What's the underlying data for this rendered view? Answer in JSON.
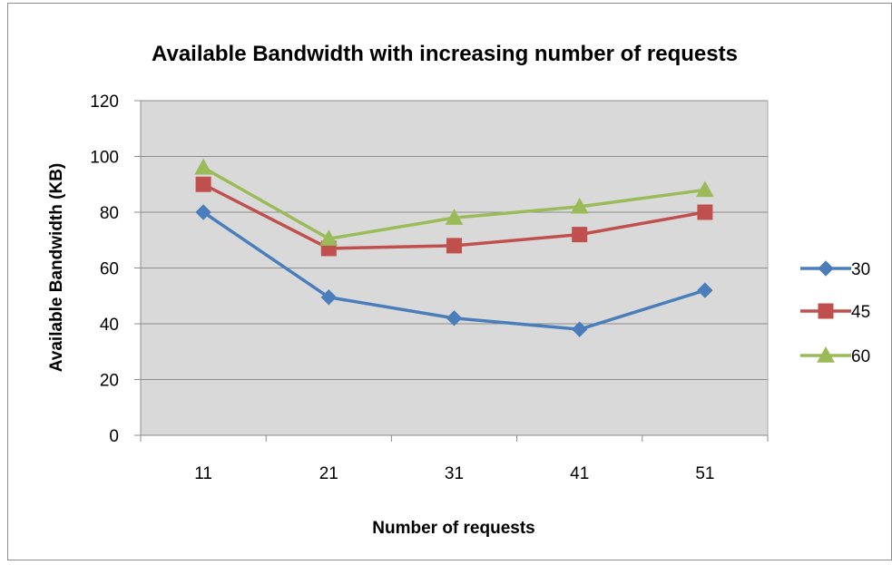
{
  "chart_data": {
    "type": "line",
    "title": "Available Bandwidth with increasing number of requests",
    "xlabel": "Number of requests",
    "ylabel": "Available Bandwidth (KB)",
    "categories": [
      "11",
      "21",
      "31",
      "41",
      "51"
    ],
    "ylim": [
      0,
      120
    ],
    "yticks": [
      "0",
      "20",
      "40",
      "60",
      "80",
      "100",
      "120"
    ],
    "grid": true,
    "legend": "right",
    "series": [
      {
        "name": "30",
        "values": [
          80,
          49.5,
          42,
          38,
          52
        ],
        "color": "#4a7ebb",
        "marker": "diamond"
      },
      {
        "name": "45",
        "values": [
          90,
          67,
          68,
          72,
          80
        ],
        "color": "#c0504d",
        "marker": "square"
      },
      {
        "name": "60",
        "values": [
          96,
          70.5,
          78,
          82,
          88
        ],
        "color": "#9bbb59",
        "marker": "triangle"
      }
    ]
  }
}
